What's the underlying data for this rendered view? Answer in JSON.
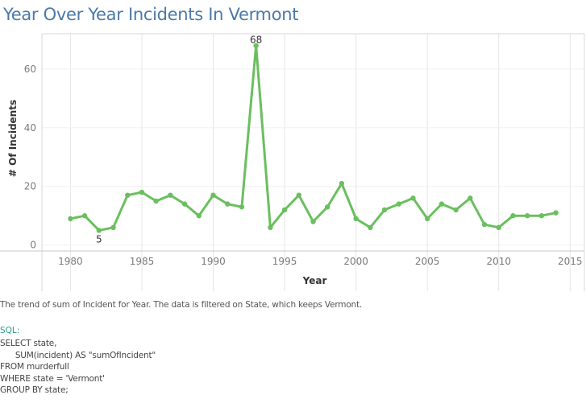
{
  "title": "Year Over Year Incidents In Vermont",
  "caption": "The trend of sum of Incident for Year.  The data is filtered on State, which keeps Vermont.",
  "sql_label": "SQL:",
  "sql_lines": [
    "SELECT state,",
    "      SUM(incident) AS \"sumOfIncident\"",
    "FROM murderfull",
    "WHERE state = 'Vermont'",
    "GROUP BY state;"
  ],
  "colors": {
    "line": "#6abf5e",
    "title": "#4a79a8",
    "grid": "#e6e6e6"
  },
  "chart_data": {
    "type": "line",
    "xlabel": "Year",
    "ylabel": "# Of Incidents",
    "xlim": [
      1978,
      2016
    ],
    "ylim": [
      -2,
      72
    ],
    "x_ticks": [
      1980,
      1985,
      1990,
      1995,
      2000,
      2005,
      2010,
      2015
    ],
    "y_ticks": [
      0,
      20,
      40,
      60
    ],
    "grid": true,
    "series": [
      {
        "x": [
          1980,
          1981,
          1982,
          1983,
          1984,
          1985,
          1986,
          1987,
          1988,
          1989,
          1990,
          1991,
          1992,
          1993,
          1994,
          1995,
          1996,
          1997,
          1998,
          1999,
          2000,
          2001,
          2002,
          2003,
          2004,
          2005,
          2006,
          2007,
          2008,
          2009,
          2010,
          2011,
          2012,
          2013,
          2014
        ],
        "values": [
          9,
          10,
          5,
          6,
          17,
          18,
          15,
          17,
          14,
          10,
          17,
          14,
          13,
          68,
          6,
          12,
          17,
          8,
          13,
          21,
          9,
          6,
          12,
          14,
          16,
          9,
          14,
          12,
          16,
          7,
          6,
          10,
          10,
          10,
          11
        ]
      }
    ],
    "annotations": [
      {
        "x": 1993,
        "y": 68,
        "text": "68",
        "position": "above"
      },
      {
        "x": 1982,
        "y": 5,
        "text": "5",
        "position": "below"
      }
    ]
  }
}
